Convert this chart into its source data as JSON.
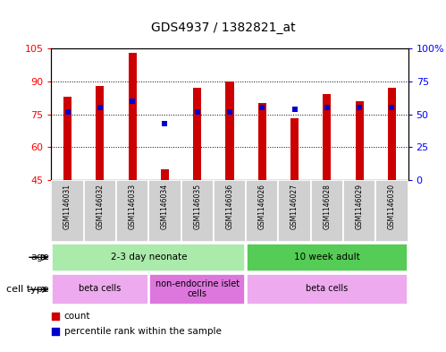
{
  "title": "GDS4937 / 1382821_at",
  "samples": [
    "GSM1146031",
    "GSM1146032",
    "GSM1146033",
    "GSM1146034",
    "GSM1146035",
    "GSM1146036",
    "GSM1146026",
    "GSM1146027",
    "GSM1146028",
    "GSM1146029",
    "GSM1146030"
  ],
  "counts": [
    83,
    88,
    103,
    50,
    87,
    90,
    80,
    73,
    84,
    81,
    87
  ],
  "percentiles": [
    52,
    55,
    60,
    43,
    52,
    52,
    55,
    54,
    55,
    55,
    55
  ],
  "ylim_left": [
    45,
    105
  ],
  "ylim_right": [
    0,
    100
  ],
  "yticks_left": [
    45,
    60,
    75,
    90,
    105
  ],
  "yticks_right": [
    0,
    25,
    50,
    75,
    100
  ],
  "ytick_labels_left": [
    "45",
    "60",
    "75",
    "90",
    "105"
  ],
  "ytick_labels_right": [
    "0",
    "25",
    "50",
    "75",
    "100%"
  ],
  "bar_color": "#cc0000",
  "dot_color": "#0000cc",
  "bar_bottom": 45,
  "age_groups": [
    {
      "label": "2-3 day neonate",
      "start": 0,
      "end": 6,
      "color": "#aaeaaa"
    },
    {
      "label": "10 week adult",
      "start": 6,
      "end": 11,
      "color": "#55cc55"
    }
  ],
  "cell_type_groups": [
    {
      "label": "beta cells",
      "start": 0,
      "end": 3,
      "color": "#eeaaee"
    },
    {
      "label": "non-endocrine islet\ncells",
      "start": 3,
      "end": 6,
      "color": "#dd77dd"
    },
    {
      "label": "beta cells",
      "start": 6,
      "end": 11,
      "color": "#eeaaee"
    }
  ],
  "bar_width": 0.25,
  "dot_size": 18,
  "label_fontsize": 5.5,
  "annot_fontsize": 7.5,
  "legend_fontsize": 7.5,
  "title_fontsize": 10
}
